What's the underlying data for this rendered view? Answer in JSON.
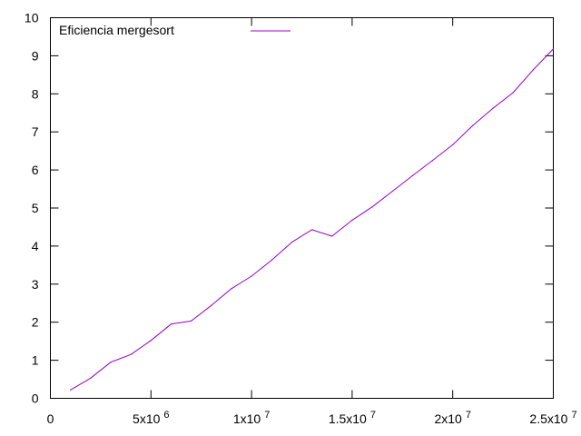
{
  "chart_data": {
    "type": "line",
    "title": "",
    "xlabel": "",
    "ylabel": "",
    "xlim": [
      0,
      25000000
    ],
    "ylim": [
      0,
      10
    ],
    "grid": false,
    "legend_position": "top-left",
    "x_ticks": [
      {
        "value": 0,
        "label": "0"
      },
      {
        "value": 5000000,
        "label": "5x10",
        "exp": "6"
      },
      {
        "value": 10000000,
        "label": "1x10",
        "exp": "7"
      },
      {
        "value": 15000000,
        "label": "1.5x10",
        "exp": "7"
      },
      {
        "value": 20000000,
        "label": "2x10",
        "exp": "7"
      },
      {
        "value": 25000000,
        "label": "2.5x10",
        "exp": "7"
      }
    ],
    "y_ticks": [
      {
        "value": 0,
        "label": "0"
      },
      {
        "value": 1,
        "label": "1"
      },
      {
        "value": 2,
        "label": "2"
      },
      {
        "value": 3,
        "label": "3"
      },
      {
        "value": 4,
        "label": "4"
      },
      {
        "value": 5,
        "label": "5"
      },
      {
        "value": 6,
        "label": "6"
      },
      {
        "value": 7,
        "label": "7"
      },
      {
        "value": 8,
        "label": "8"
      },
      {
        "value": 9,
        "label": "9"
      },
      {
        "value": 10,
        "label": "10"
      }
    ],
    "series": [
      {
        "name": "Eficiencia mergesort",
        "color": "#9400d3",
        "x": [
          1000000,
          2000000,
          3000000,
          4000000,
          5000000,
          6000000,
          7000000,
          8000000,
          9000000,
          10000000,
          11000000,
          12000000,
          13000000,
          14000000,
          15000000,
          16000000,
          17000000,
          18000000,
          19000000,
          20000000,
          21000000,
          22000000,
          23000000,
          24000000,
          25000000
        ],
        "y": [
          0.22,
          0.53,
          0.95,
          1.15,
          1.52,
          1.95,
          2.03,
          2.44,
          2.88,
          3.21,
          3.63,
          4.1,
          4.43,
          4.26,
          4.68,
          5.03,
          5.44,
          5.85,
          6.25,
          6.66,
          7.17,
          7.62,
          8.03,
          8.63,
          9.18
        ]
      }
    ]
  }
}
